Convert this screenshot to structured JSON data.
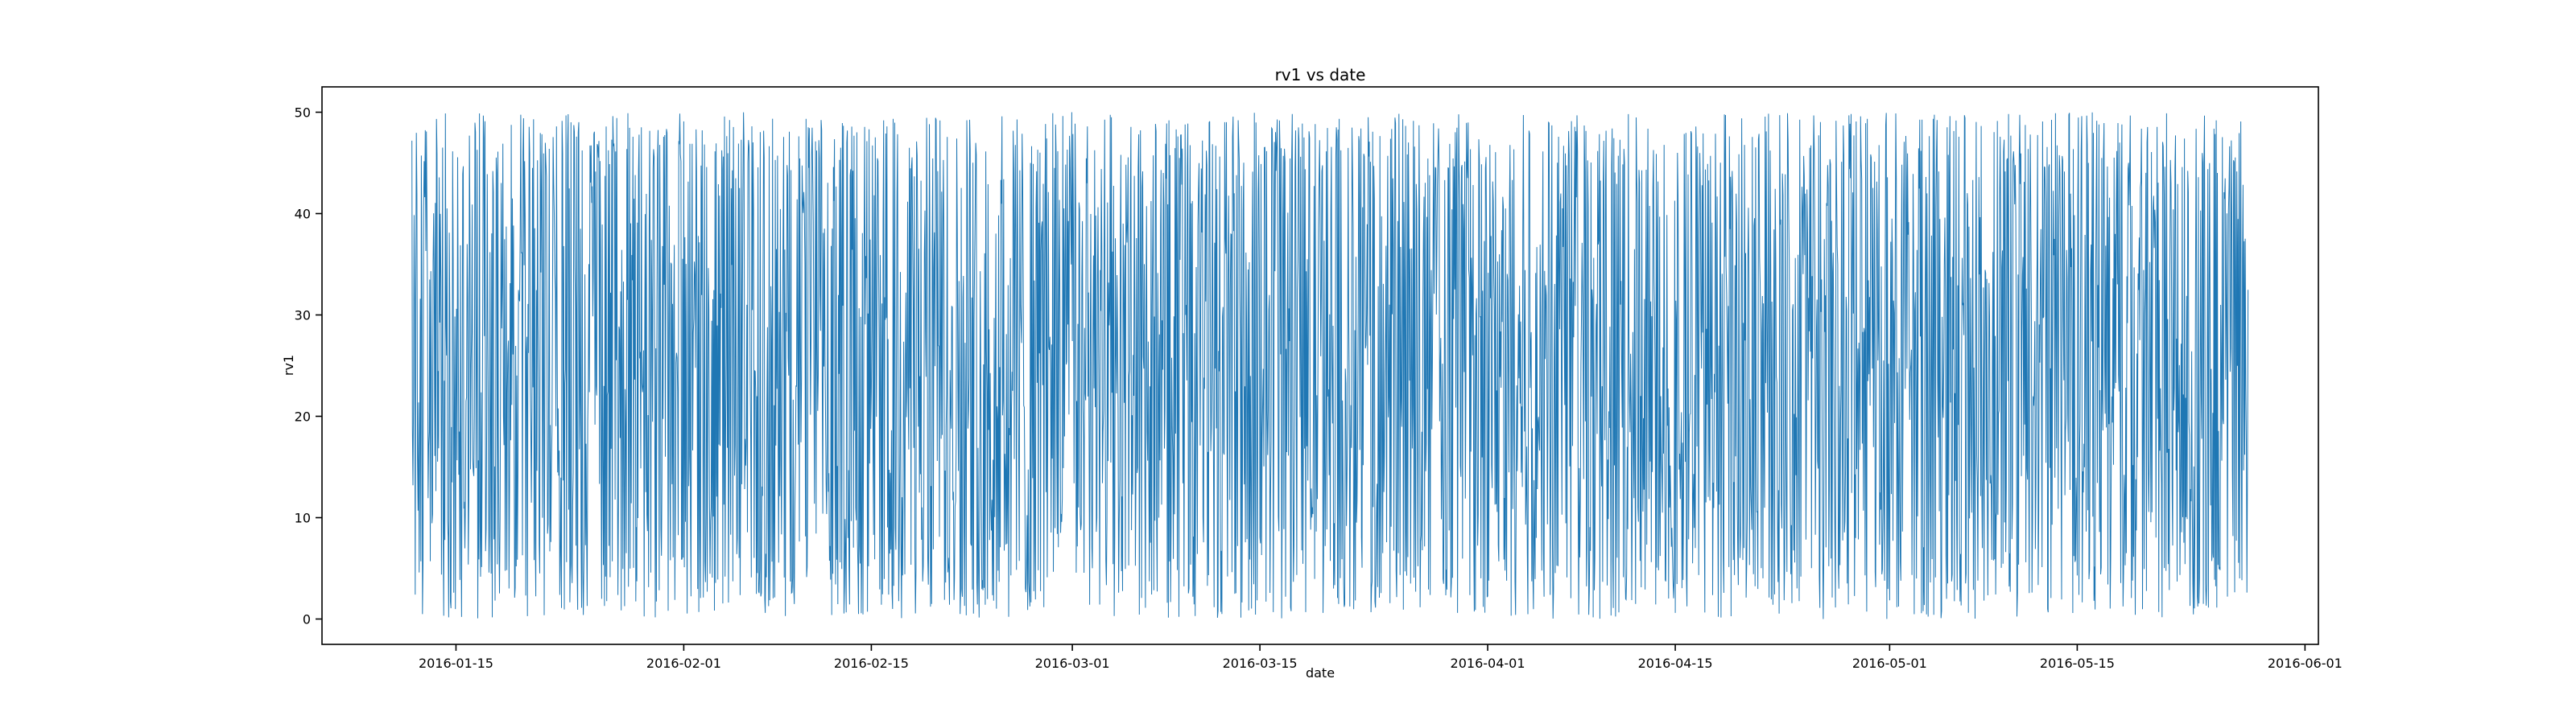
{
  "chart_data": {
    "type": "line",
    "title": "rv1 vs date",
    "xlabel": "date",
    "ylabel": "rv1",
    "color": "#1f77b4",
    "grid": false,
    "legend": "none",
    "series": [
      {
        "start_date": "2016-01-11T17:00",
        "end_date": "2016-05-27T18:00",
        "y_min": 0.0,
        "y_max": 50.0,
        "mean": 25
      }
    ],
    "xlim": [
      "2016-01-05",
      "2016-06-02"
    ],
    "ylim": [
      -2.5,
      52.5
    ],
    "xticks": [
      "2016-01-15",
      "2016-02-01",
      "2016-02-15",
      "2016-03-01",
      "2016-03-15",
      "2016-04-01",
      "2016-04-15",
      "2016-05-01",
      "2016-05-15",
      "2016-06-01"
    ],
    "yticks": [
      0,
      10,
      20,
      30,
      40,
      50
    ]
  }
}
